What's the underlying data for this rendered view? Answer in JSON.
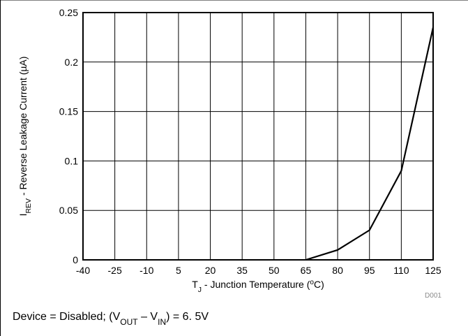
{
  "chart_data": {
    "type": "line",
    "x": [
      -40,
      -25,
      -10,
      5,
      20,
      35,
      50,
      65,
      80,
      95,
      110,
      125
    ],
    "series": [
      {
        "values": [
          null,
          null,
          null,
          null,
          null,
          null,
          null,
          0,
          0.01,
          0.03,
          0.09,
          0.235
        ]
      }
    ],
    "xlabel": {
      "parts": [
        {
          "text": "T",
          "sub": false
        },
        {
          "text": "J",
          "sub": true
        },
        {
          "text": " - Junction Temperature (",
          "sub": false
        },
        {
          "text": "o",
          "sup": true
        },
        {
          "text": "C)",
          "sub": false
        }
      ]
    },
    "ylabel": {
      "parts": [
        {
          "text": "I",
          "sub": false
        },
        {
          "text": "REV",
          "sub": true
        },
        {
          "text": " - Reverse Leakage Current (µA)",
          "sub": false
        }
      ]
    },
    "xlim": [
      -40,
      125
    ],
    "ylim": [
      0,
      0.25
    ],
    "xticks": [
      "-40",
      "-25",
      "-10",
      "5",
      "20",
      "35",
      "50",
      "65",
      "80",
      "95",
      "110",
      "125"
    ],
    "yticks": [
      "0",
      "0.05",
      "0.1",
      "0.15",
      "0.2",
      "0.25"
    ],
    "grid": true,
    "line_color": "#000000",
    "figure_code": "D001",
    "caption": {
      "parts": [
        {
          "text": "Device = Disabled; (V",
          "sub": false
        },
        {
          "text": "OUT",
          "sub": true
        },
        {
          "text": " – V",
          "sub": false
        },
        {
          "text": "IN",
          "sub": true
        },
        {
          "text": ") = 6. 5V",
          "sub": false
        }
      ]
    }
  }
}
